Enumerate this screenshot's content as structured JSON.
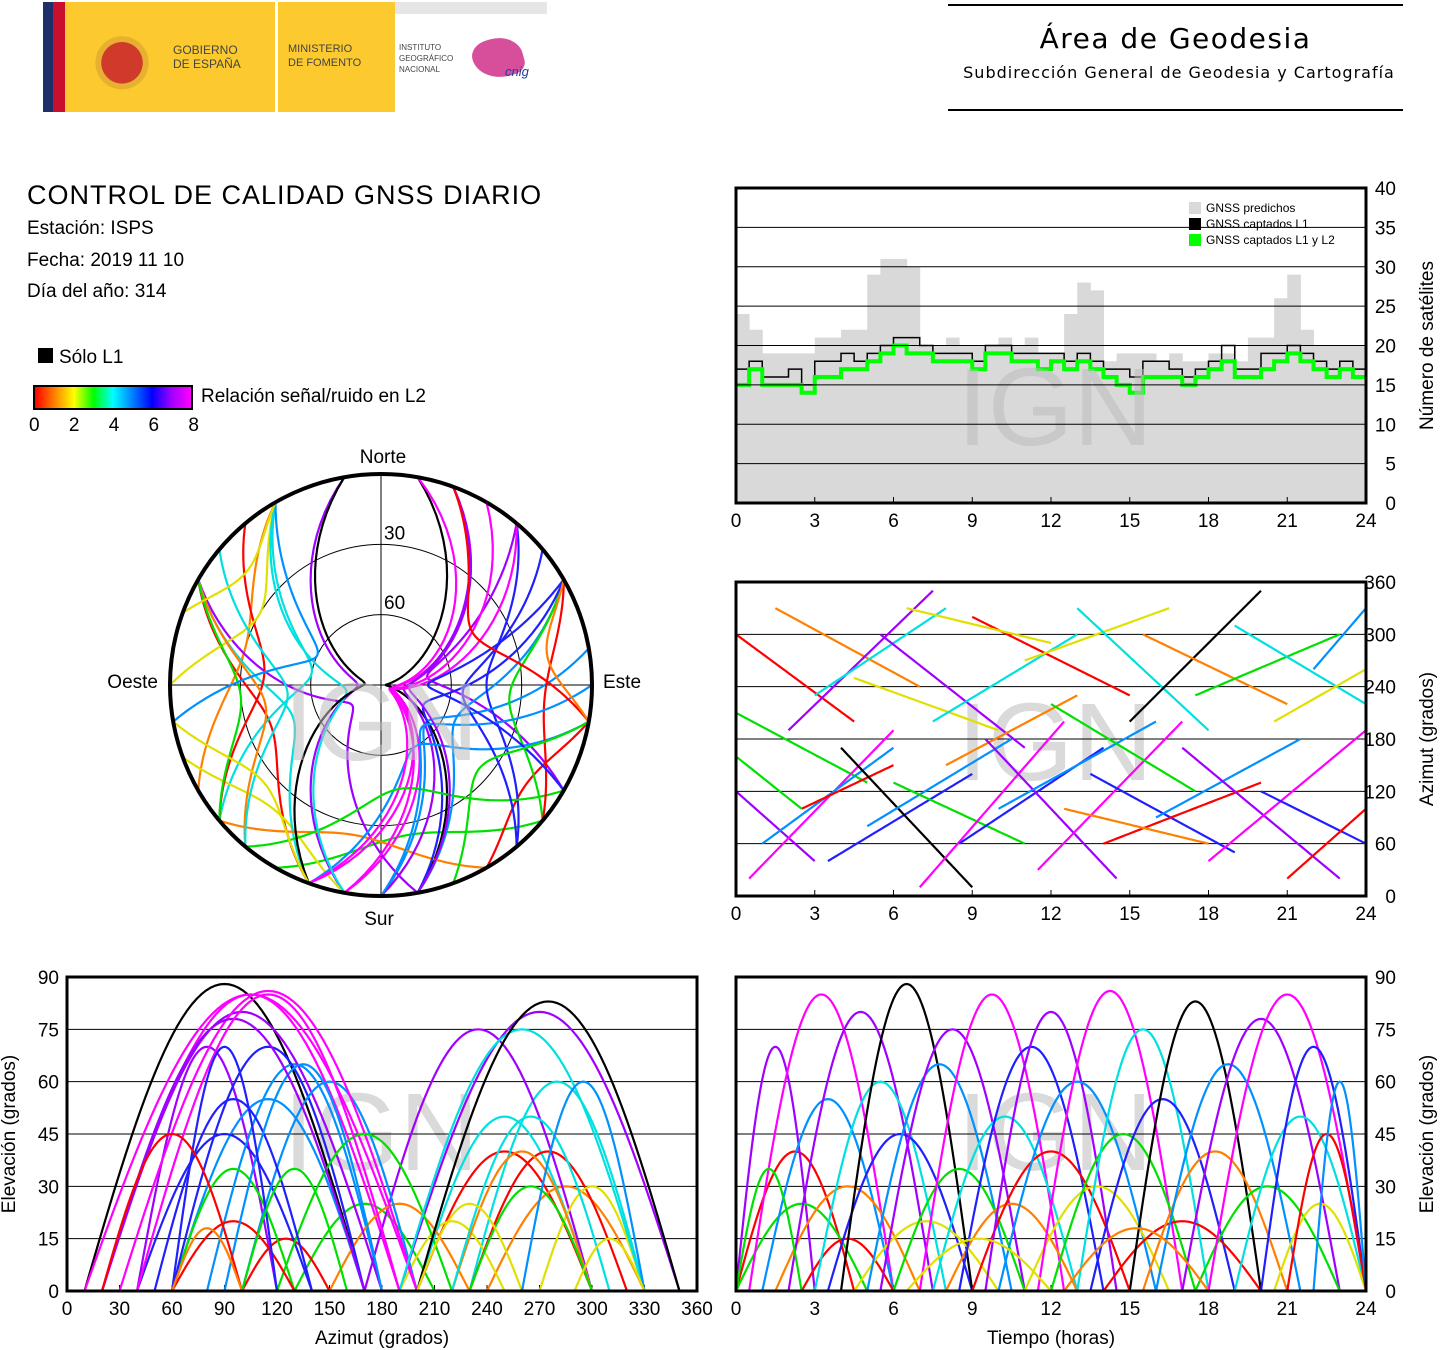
{
  "header": {
    "gob_line1": "GOBIERNO",
    "gob_line2": "DE ESPAÑA",
    "min_line1": "MINISTERIO",
    "min_line2": "DE FOMENTO",
    "ign_line1": "INSTITUTO",
    "ign_line2": "GEOGRÁFICO",
    "ign_line3": "NACIONAL",
    "cnig": "cnig",
    "area_title": "Área de Geodesia",
    "area_subtitle": "Subdirección General de Geodesia y Cartografía"
  },
  "report": {
    "title": "CONTROL DE CALIDAD GNSS DIARIO",
    "station": "Estación: ISPS",
    "date": "Fecha: 2019 11 10",
    "doy": "Día del año: 314",
    "l1_only": "Sólo L1",
    "snr_label": "Relación señal/ruido en L2",
    "snr_ticks": [
      "0",
      "2",
      "4",
      "6",
      "8"
    ]
  },
  "colors": {
    "palette": [
      "#ff0000",
      "#ff8000",
      "#e0e000",
      "#00e000",
      "#00e0e0",
      "#0090ff",
      "#2020ff",
      "#a000ff",
      "#ff00ff",
      "#000000"
    ],
    "predicted": "#d9d9d9",
    "l1": "#000000",
    "l1l2": "#00ff00"
  },
  "watermark": "IGN",
  "chart_data": [
    {
      "type": "area",
      "id": "satellites",
      "ylabel": "Número de satélites",
      "xlim": [
        0,
        24
      ],
      "ylim": [
        0,
        40
      ],
      "xticks": [
        "0",
        "3",
        "6",
        "9",
        "12",
        "15",
        "18",
        "21",
        "24"
      ],
      "yticks": [
        "0",
        "5",
        "10",
        "15",
        "20",
        "25",
        "30",
        "35",
        "40"
      ],
      "legend": [
        "GNSS predichos",
        "GNSS captados L1",
        "GNSS captados L1 y L2"
      ],
      "legend_position": "top-right",
      "x_step_hours": 0.5,
      "series": [
        {
          "name": "GNSS predichos",
          "values": [
            24,
            22,
            19,
            19,
            19,
            19,
            21,
            21,
            22,
            22,
            29,
            31,
            31,
            30,
            20,
            20,
            21,
            20,
            20,
            20,
            21,
            20,
            21,
            19,
            19,
            24,
            28,
            27,
            18,
            19,
            19,
            19,
            18,
            19,
            18,
            18,
            19,
            19,
            18,
            21,
            21,
            26,
            29,
            22,
            20,
            20,
            20,
            20
          ]
        },
        {
          "name": "GNSS captados L1",
          "values": [
            17,
            18,
            16,
            16,
            17,
            15,
            18,
            18,
            19,
            18,
            19,
            20,
            21,
            21,
            20,
            19,
            19,
            19,
            18,
            20,
            20,
            19,
            19,
            19,
            19,
            18,
            19,
            18,
            17,
            17,
            16,
            18,
            18,
            17,
            16,
            17,
            18,
            20,
            17,
            17,
            19,
            19,
            20,
            19,
            18,
            17,
            18,
            17
          ]
        },
        {
          "name": "GNSS captados L1 y L2",
          "values": [
            15,
            17,
            15,
            15,
            15,
            14,
            16,
            16,
            17,
            17,
            18,
            19,
            20,
            19,
            19,
            18,
            18,
            18,
            17,
            19,
            19,
            18,
            18,
            17,
            18,
            17,
            18,
            17,
            16,
            15,
            14,
            16,
            16,
            16,
            15,
            16,
            17,
            18,
            16,
            16,
            17,
            18,
            19,
            18,
            17,
            16,
            17,
            16
          ]
        }
      ]
    },
    {
      "type": "scatter",
      "id": "azimuth-time",
      "ylabel": "Azimut (grados)",
      "xlim": [
        0,
        24
      ],
      "ylim": [
        0,
        360
      ],
      "xticks": [
        "0",
        "3",
        "6",
        "9",
        "12",
        "15",
        "18",
        "21",
        "24"
      ],
      "yticks": [
        "0",
        "60",
        "120",
        "180",
        "240",
        "300",
        "360"
      ]
    },
    {
      "type": "scatter",
      "id": "elevation-azimuth",
      "xlabel": "Azimut (grados)",
      "ylabel": "Elevación (grados)",
      "xlim": [
        0,
        360
      ],
      "ylim": [
        0,
        90
      ],
      "xticks": [
        "0",
        "30",
        "60",
        "90",
        "120",
        "150",
        "180",
        "210",
        "240",
        "270",
        "300",
        "330",
        "360"
      ],
      "yticks": [
        "0",
        "15",
        "30",
        "45",
        "60",
        "75",
        "90"
      ]
    },
    {
      "type": "scatter",
      "id": "elevation-time",
      "xlabel": "Tiempo (horas)",
      "ylabel": "Elevación (grados)",
      "xlim": [
        0,
        24
      ],
      "ylim": [
        0,
        90
      ],
      "xticks": [
        "0",
        "3",
        "6",
        "9",
        "12",
        "15",
        "18",
        "21",
        "24"
      ],
      "yticks": [
        "0",
        "15",
        "30",
        "45",
        "60",
        "75",
        "90"
      ]
    },
    {
      "type": "scatter",
      "id": "skyplot",
      "labels": {
        "north": "Norte",
        "south": "Sur",
        "east": "Este",
        "west": "Oeste",
        "ring30": "30",
        "ring60": "60"
      }
    },
    {
      "type": "passes",
      "id": "satellite-passes",
      "columns": [
        "t_start_h",
        "t_end_h",
        "max_elev_deg",
        "az_start_deg",
        "az_end_deg",
        "color_index"
      ],
      "rows": [
        [
          0,
          4.5,
          40,
          300,
          200,
          0
        ],
        [
          0,
          3,
          70,
          120,
          40,
          7
        ],
        [
          0,
          5,
          25,
          210,
          130,
          3
        ],
        [
          0.5,
          6,
          85,
          20,
          190,
          8
        ],
        [
          1,
          6,
          55,
          60,
          170,
          5
        ],
        [
          1.5,
          7,
          30,
          330,
          240,
          1
        ],
        [
          2,
          7.5,
          80,
          190,
          350,
          7
        ],
        [
          2.5,
          6,
          15,
          100,
          150,
          0
        ],
        [
          3,
          8,
          60,
          230,
          330,
          4
        ],
        [
          3.5,
          9,
          45,
          40,
          140,
          6
        ],
        [
          4,
          9,
          88,
          170,
          10,
          9
        ],
        [
          4.5,
          10,
          20,
          250,
          190,
          2
        ],
        [
          5,
          10.5,
          65,
          80,
          180,
          5
        ],
        [
          5.5,
          11,
          75,
          300,
          170,
          7
        ],
        [
          6,
          11,
          35,
          130,
          60,
          3
        ],
        [
          7,
          12.5,
          85,
          10,
          200,
          8
        ],
        [
          7.5,
          13,
          50,
          200,
          300,
          4
        ],
        [
          8,
          13,
          25,
          150,
          230,
          1
        ],
        [
          8.5,
          14,
          70,
          60,
          170,
          6
        ],
        [
          9,
          15,
          40,
          320,
          230,
          0
        ],
        [
          9.5,
          14.5,
          80,
          180,
          20,
          7
        ],
        [
          10,
          16,
          60,
          100,
          200,
          5
        ],
        [
          11,
          16.5,
          30,
          270,
          330,
          2
        ],
        [
          11.5,
          17,
          86,
          30,
          200,
          8
        ],
        [
          12,
          17.5,
          45,
          220,
          120,
          3
        ],
        [
          13,
          18,
          75,
          330,
          190,
          4
        ],
        [
          13.5,
          19,
          55,
          140,
          50,
          6
        ],
        [
          14,
          20,
          20,
          60,
          130,
          0
        ],
        [
          15,
          20,
          83,
          200,
          350,
          9
        ],
        [
          15.5,
          21,
          40,
          300,
          220,
          1
        ],
        [
          16,
          21.5,
          65,
          90,
          180,
          5
        ],
        [
          17,
          23,
          78,
          170,
          20,
          7
        ],
        [
          17.5,
          23,
          30,
          230,
          300,
          3
        ],
        [
          18,
          24,
          85,
          40,
          190,
          8
        ],
        [
          19,
          24,
          50,
          310,
          220,
          4
        ],
        [
          20,
          24,
          70,
          120,
          60,
          6
        ],
        [
          20.5,
          24,
          25,
          200,
          260,
          2
        ],
        [
          21,
          24,
          45,
          20,
          100,
          0
        ],
        [
          22,
          24,
          60,
          260,
          330,
          5
        ],
        [
          0,
          2.5,
          35,
          160,
          100,
          3
        ],
        [
          6.5,
          12,
          15,
          330,
          290,
          2
        ],
        [
          12.5,
          18,
          18,
          100,
          60,
          1
        ]
      ]
    }
  ]
}
